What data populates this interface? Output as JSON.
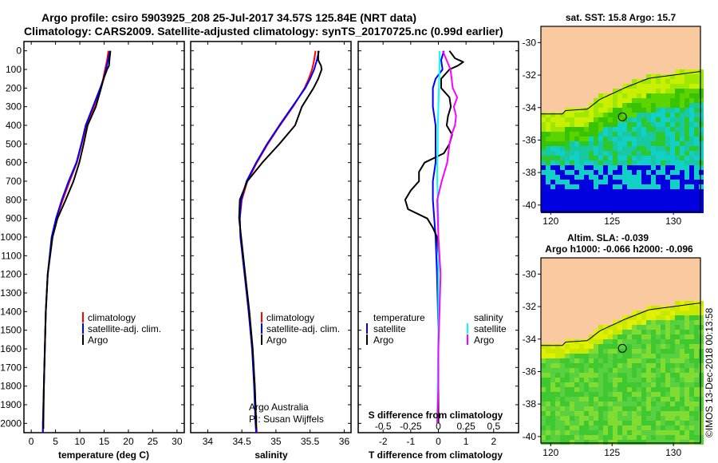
{
  "header": {
    "line1": "Argo profile: csiro 5903925_208 25-Jul-2017 34.57S 125.84E (NRT data)",
    "line2": "Climatology: CARS2009. Satellite-adjusted climatology: synTS_20170725.nc (0.99d earlier)"
  },
  "colors": {
    "climatology": "#ff0000",
    "satellite": "#0000ff",
    "argo": "#000000",
    "satellite_salinity": "#00ffff",
    "argo_salinity": "#ff00ff",
    "land": "#f9c9a0",
    "ocean_deep": "#0000e0"
  },
  "depth_ticks": [
    "0",
    "100",
    "200",
    "300",
    "400",
    "500",
    "600",
    "700",
    "800",
    "900",
    "1000",
    "1100",
    "1200",
    "1300",
    "1400",
    "1500",
    "1600",
    "1700",
    "1800",
    "1900",
    "2000"
  ],
  "chart_data": [
    {
      "type": "line",
      "xlabel": "temperature (deg C)",
      "xticks": [
        "0",
        "5",
        "10",
        "15",
        "20",
        "25",
        "30"
      ],
      "xlim": [
        -1.5,
        31.5
      ],
      "ylim": [
        2050,
        0
      ],
      "legend": [
        "climatology",
        "satellite-adj. clim.",
        "Argo"
      ],
      "series": [
        {
          "name": "climatology",
          "depth": [
            0,
            50,
            100,
            150,
            200,
            300,
            400,
            500,
            600,
            700,
            800,
            900,
            1000,
            1200,
            1400,
            1600,
            1800,
            2000,
            2050
          ],
          "values": [
            15.9,
            15.6,
            15.2,
            14.8,
            14.3,
            12.9,
            11.3,
            10.4,
            9.4,
            7.9,
            6.5,
            5.2,
            4.3,
            3.4,
            3.0,
            2.8,
            2.6,
            2.4,
            2.4
          ]
        },
        {
          "name": "satellite-adj. clim.",
          "depth": [
            0,
            50,
            100,
            150,
            200,
            300,
            400,
            500,
            600,
            700,
            800,
            900,
            1000,
            1200,
            1400,
            1600,
            1800,
            2000,
            2050
          ],
          "values": [
            16.2,
            15.8,
            15.4,
            14.9,
            14.2,
            12.7,
            11.2,
            10.3,
            9.3,
            7.7,
            6.3,
            5.1,
            4.2,
            3.4,
            3.0,
            2.8,
            2.6,
            2.4,
            2.4
          ]
        },
        {
          "name": "Argo",
          "depth": [
            0,
            50,
            80,
            100,
            150,
            200,
            300,
            400,
            500,
            600,
            700,
            800,
            900,
            1000,
            1200,
            1400,
            1600,
            1800,
            2000,
            2030
          ],
          "values": [
            16.3,
            16.1,
            16.0,
            15.6,
            14.9,
            14.4,
            13.3,
            11.6,
            10.8,
            9.9,
            8.7,
            7.1,
            5.4,
            4.4,
            3.4,
            3.0,
            2.8,
            2.6,
            2.5,
            2.5
          ]
        }
      ]
    },
    {
      "type": "line",
      "xlabel": "salinity",
      "xticks": [
        "34",
        "34.5",
        "35",
        "35.5",
        "36"
      ],
      "xlim": [
        33.75,
        36.1
      ],
      "ylim": [
        2050,
        0
      ],
      "legend": [
        "climatology",
        "satellite-adj. clim.",
        "Argo"
      ],
      "note": [
        "Argo Australia",
        "PI: Susan Wijffels"
      ],
      "series": [
        {
          "name": "climatology",
          "depth": [
            0,
            50,
            100,
            150,
            200,
            300,
            400,
            500,
            600,
            700,
            800,
            900,
            1000,
            1200,
            1400,
            1600,
            1800,
            2000,
            2050
          ],
          "values": [
            35.58,
            35.56,
            35.53,
            35.48,
            35.42,
            35.25,
            35.06,
            34.88,
            34.72,
            34.58,
            34.5,
            34.47,
            34.48,
            34.54,
            34.6,
            34.65,
            34.69,
            34.71,
            34.72
          ]
        },
        {
          "name": "satellite-adj. clim.",
          "depth": [
            0,
            50,
            100,
            150,
            200,
            300,
            400,
            500,
            600,
            700,
            800,
            900,
            1000,
            1200,
            1400,
            1600,
            1800,
            2000,
            2050
          ],
          "values": [
            35.63,
            35.6,
            35.56,
            35.5,
            35.43,
            35.24,
            35.05,
            34.87,
            34.71,
            34.57,
            34.49,
            34.47,
            34.48,
            34.54,
            34.6,
            34.65,
            34.68,
            34.7,
            34.71
          ]
        },
        {
          "name": "Argo",
          "depth": [
            0,
            50,
            80,
            100,
            150,
            200,
            300,
            400,
            500,
            600,
            700,
            800,
            900,
            1000,
            1200,
            1400,
            1600,
            1800,
            2000,
            2030
          ],
          "values": [
            35.62,
            35.62,
            35.66,
            35.67,
            35.62,
            35.55,
            35.38,
            35.28,
            35.05,
            34.8,
            34.58,
            34.47,
            34.46,
            34.49,
            34.55,
            34.61,
            34.66,
            34.69,
            34.71,
            34.71
          ]
        }
      ]
    },
    {
      "type": "line",
      "xlabel": "T difference from climatology",
      "toplabel": "S difference from climatology",
      "xticks": [
        "-2",
        "-1",
        "0",
        "1",
        "2"
      ],
      "top_ticks": [
        "-0.5",
        "-0.25",
        "0",
        "0.25",
        "0.5"
      ],
      "xlim": [
        -2.9,
        2.9
      ],
      "ylim": [
        2050,
        0
      ],
      "legend_temperature": {
        "title": "temperature",
        "items": [
          "satellite",
          "Argo"
        ]
      },
      "legend_salinity": {
        "title": "salinity",
        "items": [
          "satellite",
          "Argo"
        ]
      },
      "series": [
        {
          "name": "temperature satellite",
          "depth": [
            0,
            50,
            100,
            150,
            200,
            300,
            400,
            500,
            600,
            700,
            800,
            900,
            1000,
            1200,
            1500,
            2000
          ],
          "values": [
            0.2,
            0.1,
            0.15,
            -0.1,
            -0.2,
            -0.2,
            -0.1,
            -0.1,
            -0.1,
            -0.2,
            -0.2,
            -0.15,
            -0.1,
            -0.05,
            0,
            0
          ]
        },
        {
          "name": "temperature Argo",
          "depth": [
            0,
            40,
            60,
            80,
            100,
            150,
            200,
            250,
            300,
            350,
            400,
            450,
            500,
            550,
            600,
            650,
            700,
            750,
            800,
            850,
            900,
            950,
            1000,
            1100,
            1200,
            1400,
            1600,
            1800,
            2000
          ],
          "values": [
            0.4,
            0.6,
            0.9,
            0.7,
            0.4,
            0.1,
            0.1,
            0.4,
            0.45,
            0.35,
            0.3,
            0.5,
            0.4,
            0.2,
            -0.5,
            -0.7,
            -0.7,
            -1.0,
            -1.2,
            -1.1,
            -0.4,
            -0.2,
            -0.05,
            0,
            0,
            0,
            0,
            0,
            0
          ]
        },
        {
          "name": "salinity satellite",
          "depth": [
            0,
            100,
            200,
            300,
            400,
            500,
            600,
            700,
            800,
            900,
            1000,
            1200,
            1500,
            2000
          ],
          "values": [
            0.01,
            0.01,
            0.005,
            0,
            -0.005,
            -0.005,
            -0.01,
            -0.01,
            -0.005,
            0,
            0,
            0,
            0,
            -0.01
          ]
        },
        {
          "name": "salinity Argo",
          "depth": [
            0,
            100,
            200,
            250,
            300,
            350,
            400,
            450,
            500,
            550,
            600,
            700,
            800,
            900,
            1000,
            1100,
            1200,
            1400,
            1600,
            1800,
            2000
          ],
          "values": [
            0.04,
            0.11,
            0.13,
            0.17,
            0.14,
            0.16,
            0.15,
            0.12,
            0.1,
            0.09,
            0.08,
            0.03,
            -0.01,
            -0.005,
            0,
            0.01,
            0.02,
            0.01,
            0,
            0,
            -0.01
          ]
        }
      ]
    }
  ],
  "maps": {
    "sst": {
      "title": "sat. SST: 15.8 Argo: 15.7",
      "yticks": [
        "-30",
        "-32",
        "-34",
        "-36",
        "-38",
        "-40"
      ],
      "xticks": [
        "120",
        "125",
        "130"
      ]
    },
    "sla": {
      "title1": "Altim. SLA: -0.039",
      "title2": "Argo h1000: -0.066 h2000: -0.096",
      "yticks": [
        "-30",
        "-32",
        "-34",
        "-36",
        "-38",
        "-40"
      ],
      "xticks": [
        "120",
        "125",
        "130"
      ]
    }
  },
  "credit": "©IMOS 13-Dec-2018 00:13:58"
}
